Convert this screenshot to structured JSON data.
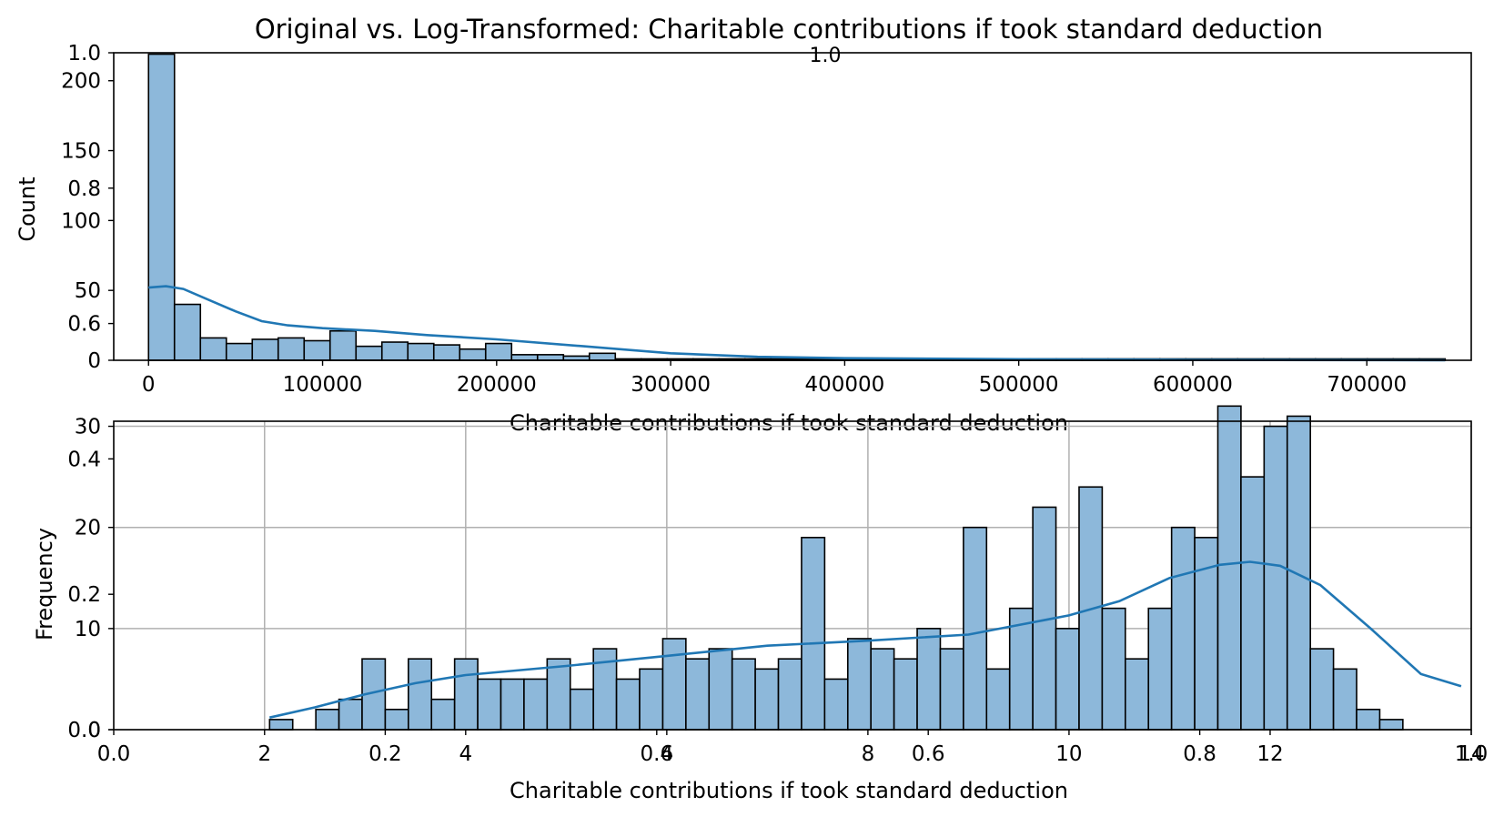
{
  "title": "Original vs. Log-Transformed: Charitable contributions if took standard deduction",
  "bar_fill": "#8db8da",
  "line_color": "#2077b4",
  "grid_color": "#b0b0b0",
  "ghost_axes": {
    "y_ticks": [
      "0.0",
      "0.2",
      "0.4",
      "0.6",
      "0.8",
      "1.0"
    ],
    "top_label": "1.0",
    "x_ticks": [
      "0.0",
      "0.2",
      "0.4",
      "0.6",
      "0.8",
      "1.0"
    ]
  },
  "chart_data": [
    {
      "type": "bar",
      "name": "histogram-original",
      "xlabel": "Charitable contributions if took standard deduction",
      "ylabel": "Count",
      "xlim": [
        -20000,
        760000
      ],
      "ylim": [
        0,
        220
      ],
      "x_ticks": [
        0,
        100000,
        200000,
        300000,
        400000,
        500000,
        600000,
        700000
      ],
      "y_ticks": [
        0,
        50,
        100,
        150,
        200
      ],
      "bins": {
        "start": 0,
        "width": 14900
      },
      "values": [
        219,
        40,
        16,
        12,
        15,
        16,
        14,
        21,
        10,
        13,
        12,
        11,
        8,
        12,
        4,
        4,
        3,
        5,
        1,
        1,
        1,
        1,
        1,
        1,
        1,
        1,
        1,
        1,
        1,
        1,
        1,
        1,
        1,
        1,
        1,
        1,
        1,
        1,
        1,
        1,
        1,
        1,
        1,
        1,
        1,
        1,
        1,
        1,
        1,
        1
      ],
      "kde": [
        [
          0,
          52
        ],
        [
          10000,
          53
        ],
        [
          20000,
          51
        ],
        [
          35000,
          43
        ],
        [
          50000,
          35
        ],
        [
          65000,
          28
        ],
        [
          80000,
          25
        ],
        [
          100000,
          23
        ],
        [
          130000,
          21
        ],
        [
          160000,
          18
        ],
        [
          200000,
          15
        ],
        [
          250000,
          10
        ],
        [
          300000,
          5
        ],
        [
          350000,
          2.5
        ],
        [
          400000,
          1.5
        ],
        [
          500000,
          0.8
        ],
        [
          600000,
          0.3
        ],
        [
          745000,
          0
        ]
      ],
      "grid": false
    },
    {
      "type": "bar",
      "name": "histogram-log",
      "xlabel": "Charitable contributions if took standard deduction",
      "ylabel": "Frequency",
      "xlim": [
        0.5,
        14.0
      ],
      "ylim": [
        0,
        30.5
      ],
      "x_ticks": [
        2,
        4,
        6,
        8,
        10,
        12,
        14
      ],
      "y_ticks": [
        0,
        10,
        20,
        30
      ],
      "bins": {
        "start": 2.05,
        "width": 0.23
      },
      "values": [
        1,
        0,
        2,
        3,
        7,
        2,
        7,
        3,
        7,
        5,
        5,
        5,
        7,
        4,
        8,
        5,
        6,
        9,
        7,
        8,
        7,
        6,
        7,
        19,
        5,
        9,
        8,
        7,
        10,
        8,
        20,
        6,
        12,
        22,
        10,
        24,
        12,
        7,
        12,
        20,
        19,
        32,
        25,
        30,
        31,
        8,
        6,
        2,
        1
      ],
      "kde": [
        [
          2.05,
          1.2
        ],
        [
          2.5,
          2.2
        ],
        [
          3.0,
          3.5
        ],
        [
          3.5,
          4.6
        ],
        [
          4.0,
          5.4
        ],
        [
          5.0,
          6.3
        ],
        [
          6.0,
          7.3
        ],
        [
          7.0,
          8.3
        ],
        [
          8.0,
          8.8
        ],
        [
          9.0,
          9.4
        ],
        [
          10.0,
          11.3
        ],
        [
          10.5,
          12.7
        ],
        [
          11.0,
          15.0
        ],
        [
          11.5,
          16.3
        ],
        [
          11.8,
          16.6
        ],
        [
          12.1,
          16.2
        ],
        [
          12.5,
          14.3
        ],
        [
          13.0,
          10.0
        ],
        [
          13.5,
          5.5
        ],
        [
          13.9,
          4.3
        ]
      ],
      "grid": true
    }
  ]
}
